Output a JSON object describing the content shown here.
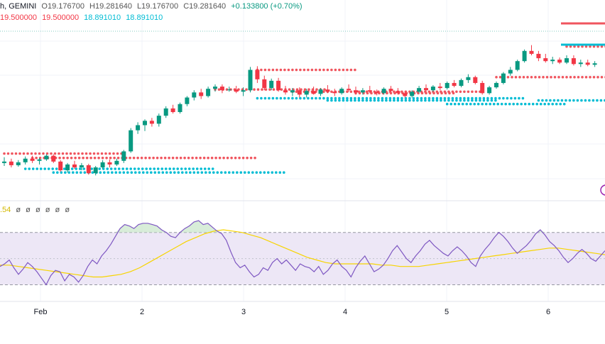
{
  "header": {
    "symbol_fragment": "h, GEMINI",
    "open": "O19.176700",
    "high": "H19.281640",
    "low": "L19.176700",
    "close": "C19.281640",
    "change": "+0.133800 (+0.70%)",
    "ind_values": [
      "19.500000",
      "19.500000",
      "18.891010",
      "18.891010"
    ]
  },
  "rsi_header": {
    "value_fragment": ".54",
    "extra_values": [
      "ø",
      "ø",
      "ø",
      "ø",
      "ø",
      "ø"
    ]
  },
  "colors": {
    "up": "#089981",
    "down": "#f23645",
    "resistance": "#f0555e",
    "support": "#00bcd4",
    "rsi_line": "#7e57c2",
    "rsi_ma": "#f7d400",
    "rsi_band": "#ede7f6"
  },
  "chart_data": {
    "type": "candlestick",
    "x_tick_labels": [
      "Feb",
      "2",
      "3",
      "4",
      "5",
      "6"
    ],
    "ohlc": [
      [
        18.3,
        18.38,
        18.26,
        18.32
      ],
      [
        18.32,
        18.36,
        18.24,
        18.27
      ],
      [
        18.27,
        18.34,
        18.25,
        18.31
      ],
      [
        18.31,
        18.39,
        18.28,
        18.36
      ],
      [
        18.36,
        18.4,
        18.3,
        18.33
      ],
      [
        18.33,
        18.37,
        18.28,
        18.35
      ],
      [
        18.35,
        18.42,
        18.33,
        18.4
      ],
      [
        18.4,
        18.42,
        18.3,
        18.32
      ],
      [
        18.32,
        18.34,
        18.18,
        18.2
      ],
      [
        18.2,
        18.3,
        18.17,
        18.28
      ],
      [
        18.28,
        18.33,
        18.22,
        18.24
      ],
      [
        18.24,
        18.3,
        18.2,
        18.27
      ],
      [
        18.27,
        18.29,
        18.14,
        18.16
      ],
      [
        18.16,
        18.26,
        18.13,
        18.24
      ],
      [
        18.24,
        18.34,
        18.22,
        18.31
      ],
      [
        18.31,
        18.35,
        18.24,
        18.28
      ],
      [
        18.28,
        18.36,
        18.26,
        18.33
      ],
      [
        18.33,
        18.48,
        18.3,
        18.46
      ],
      [
        18.46,
        18.78,
        18.44,
        18.75
      ],
      [
        18.75,
        18.86,
        18.7,
        18.82
      ],
      [
        18.82,
        18.9,
        18.74,
        18.88
      ],
      [
        18.88,
        18.92,
        18.8,
        18.84
      ],
      [
        18.84,
        18.98,
        18.8,
        18.95
      ],
      [
        18.95,
        19.08,
        18.92,
        19.05
      ],
      [
        19.05,
        19.1,
        18.98,
        19.0
      ],
      [
        19.0,
        19.13,
        18.98,
        19.11
      ],
      [
        19.11,
        19.22,
        19.08,
        19.2
      ],
      [
        19.2,
        19.3,
        19.16,
        19.27
      ],
      [
        19.27,
        19.32,
        19.18,
        19.22
      ],
      [
        19.22,
        19.35,
        19.2,
        19.32
      ],
      [
        19.32,
        19.38,
        19.28,
        19.35
      ],
      [
        19.35,
        19.38,
        19.26,
        19.3
      ],
      [
        19.3,
        19.35,
        19.28,
        19.31
      ],
      [
        19.31,
        19.36,
        19.26,
        19.28
      ],
      [
        19.28,
        19.34,
        19.22,
        19.3
      ],
      [
        19.3,
        19.62,
        19.27,
        19.58
      ],
      [
        19.58,
        19.63,
        19.4,
        19.45
      ],
      [
        19.45,
        19.5,
        19.3,
        19.33
      ],
      [
        19.33,
        19.46,
        19.3,
        19.43
      ],
      [
        19.43,
        19.47,
        19.28,
        19.3
      ],
      [
        19.3,
        19.36,
        19.24,
        19.27
      ],
      [
        19.27,
        19.33,
        19.22,
        19.3
      ],
      [
        19.3,
        19.34,
        19.2,
        19.24
      ],
      [
        19.24,
        19.32,
        19.2,
        19.29
      ],
      [
        19.29,
        19.35,
        19.24,
        19.25
      ],
      [
        19.25,
        19.33,
        19.22,
        19.31
      ],
      [
        19.31,
        19.37,
        19.26,
        19.28
      ],
      [
        19.28,
        19.32,
        19.22,
        19.26
      ],
      [
        19.26,
        19.34,
        19.24,
        19.32
      ],
      [
        19.32,
        19.38,
        19.28,
        19.3
      ],
      [
        19.3,
        19.35,
        19.24,
        19.27
      ],
      [
        19.27,
        19.33,
        19.24,
        19.3
      ],
      [
        19.3,
        19.36,
        19.26,
        19.28
      ],
      [
        19.28,
        19.31,
        19.23,
        19.26
      ],
      [
        19.26,
        19.34,
        19.24,
        19.32
      ],
      [
        19.32,
        19.36,
        19.27,
        19.29
      ],
      [
        19.29,
        19.33,
        19.24,
        19.26
      ],
      [
        19.26,
        19.28,
        19.2,
        19.22
      ],
      [
        19.22,
        19.3,
        19.2,
        19.28
      ],
      [
        19.28,
        19.36,
        19.26,
        19.33
      ],
      [
        19.33,
        19.38,
        19.28,
        19.3
      ],
      [
        19.3,
        19.37,
        19.28,
        19.35
      ],
      [
        19.35,
        19.4,
        19.3,
        19.33
      ],
      [
        19.33,
        19.42,
        19.31,
        19.4
      ],
      [
        19.4,
        19.44,
        19.34,
        19.36
      ],
      [
        19.36,
        19.46,
        19.34,
        19.44
      ],
      [
        19.44,
        19.52,
        19.4,
        19.48
      ],
      [
        19.48,
        19.5,
        19.38,
        19.4
      ],
      [
        19.4,
        19.43,
        19.24,
        19.26
      ],
      [
        19.26,
        19.36,
        19.24,
        19.34
      ],
      [
        19.34,
        19.42,
        19.32,
        19.4
      ],
      [
        19.4,
        19.55,
        19.38,
        19.53
      ],
      [
        19.53,
        19.62,
        19.5,
        19.58
      ],
      [
        19.58,
        19.72,
        19.56,
        19.7
      ],
      [
        19.7,
        19.86,
        19.68,
        19.84
      ],
      [
        19.84,
        19.92,
        19.78,
        19.8
      ],
      [
        19.8,
        19.84,
        19.7,
        19.74
      ],
      [
        19.74,
        19.8,
        19.68,
        19.7
      ],
      [
        19.7,
        19.76,
        19.66,
        19.72
      ],
      [
        19.72,
        19.75,
        19.66,
        19.68
      ],
      [
        19.68,
        19.78,
        19.66,
        19.74
      ],
      [
        19.74,
        19.78,
        19.64,
        19.66
      ],
      [
        19.66,
        19.72,
        19.62,
        19.68
      ],
      [
        19.68,
        19.72,
        19.63,
        19.65
      ],
      [
        19.65,
        19.7,
        19.62,
        19.67
      ]
    ],
    "resistance_levels": [
      {
        "value": 18.43,
        "from": 0,
        "to": 17
      },
      {
        "value": 18.37,
        "from": 4,
        "to": 36
      },
      {
        "value": 19.58,
        "from": 36,
        "to": 50
      },
      {
        "value": 19.31,
        "from": 30,
        "to": 46
      },
      {
        "value": 19.28,
        "from": 41,
        "to": 68
      },
      {
        "value": 19.26,
        "from": 50,
        "to": 64
      },
      {
        "value": 19.48,
        "from": 70,
        "to": 87
      },
      {
        "value": 19.9,
        "from": 80,
        "to": 92
      }
    ],
    "support_levels": [
      {
        "value": 18.22,
        "from": 3,
        "to": 30
      },
      {
        "value": 18.17,
        "from": 7,
        "to": 40
      },
      {
        "value": 19.19,
        "from": 36,
        "to": 74
      },
      {
        "value": 19.16,
        "from": 46,
        "to": 70
      },
      {
        "value": 19.11,
        "from": 63,
        "to": 80
      },
      {
        "value": 19.16,
        "from": 76,
        "to": 95
      }
    ],
    "rsi": [
      44,
      46,
      49,
      43,
      38,
      42,
      47,
      44,
      40,
      35,
      30,
      37,
      41,
      40,
      33,
      38,
      36,
      32,
      37,
      44,
      49,
      46,
      52,
      56,
      61,
      67,
      73,
      76,
      75,
      73,
      76,
      77,
      77,
      76,
      75,
      72,
      70,
      67,
      66,
      70,
      73,
      75,
      78,
      79,
      76,
      77,
      74,
      71,
      69,
      64,
      55,
      47,
      43,
      45,
      40,
      36,
      38,
      43,
      41,
      47,
      50,
      46,
      49,
      45,
      41,
      46,
      44,
      43,
      40,
      44,
      38,
      41,
      46,
      49,
      44,
      41,
      36,
      43,
      48,
      52,
      46,
      40,
      42,
      45,
      50,
      56,
      60,
      55,
      50,
      47,
      52,
      56,
      61,
      64,
      60,
      57,
      54,
      52,
      56,
      59,
      56,
      52,
      47,
      44,
      52,
      57,
      61,
      66,
      70,
      67,
      63,
      58,
      54,
      57,
      60,
      64,
      69,
      72,
      68,
      63,
      60,
      56,
      51,
      47,
      50,
      54,
      57,
      54,
      50,
      48,
      52,
      56
    ],
    "rsi_ma": [
      45,
      45,
      44,
      43,
      42,
      41,
      40,
      39,
      38,
      37,
      36,
      36,
      37,
      38,
      40,
      43,
      47,
      51,
      55,
      59,
      63,
      66,
      69,
      71,
      72,
      71,
      70,
      68,
      66,
      63,
      60,
      57,
      54,
      51,
      49,
      47,
      46,
      46,
      46,
      46,
      46,
      45,
      45,
      44,
      44,
      44,
      45,
      46,
      47,
      48,
      49,
      50,
      51,
      52,
      53,
      54,
      55,
      56,
      57,
      58,
      58,
      57,
      56,
      55,
      54,
      53
    ],
    "rsi_levels": {
      "upper": 70,
      "middle": 50,
      "lower": 30
    },
    "rsi_ylim": [
      20,
      85
    ],
    "price_ylim": [
      17.86,
      20.15
    ]
  }
}
